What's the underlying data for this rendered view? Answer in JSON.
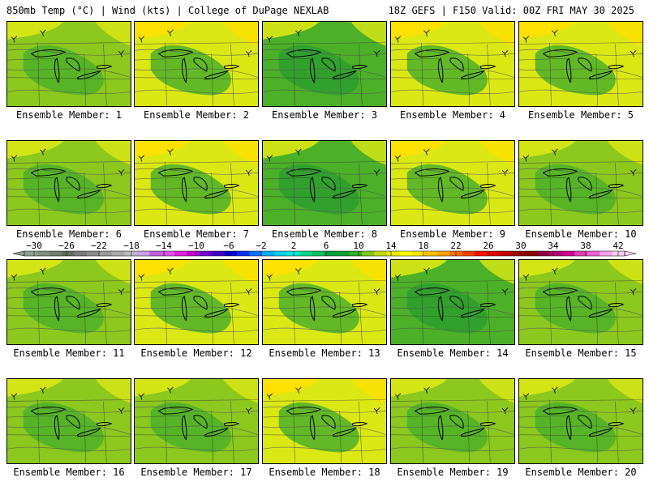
{
  "header": {
    "left": "850mb Temp (°C) | Wind (kts) | College of DuPage NEXLAB",
    "right": "18Z GEFS | F150 Valid: 00Z FRI MAY 30 2025"
  },
  "panels": [
    {
      "label": "Ensemble Member: 1",
      "tone": "mid"
    },
    {
      "label": "Ensemble Member: 2",
      "tone": "warm"
    },
    {
      "label": "Ensemble Member: 3",
      "tone": "cool"
    },
    {
      "label": "Ensemble Member: 4",
      "tone": "warm"
    },
    {
      "label": "Ensemble Member: 5",
      "tone": "warm"
    },
    {
      "label": "Ensemble Member: 6",
      "tone": "mid"
    },
    {
      "label": "Ensemble Member: 7",
      "tone": "warm"
    },
    {
      "label": "Ensemble Member: 8",
      "tone": "cool"
    },
    {
      "label": "Ensemble Member: 9",
      "tone": "warm"
    },
    {
      "label": "Ensemble Member: 10",
      "tone": "mid"
    },
    {
      "label": "Ensemble Member: 11",
      "tone": "mid"
    },
    {
      "label": "Ensemble Member: 12",
      "tone": "warm"
    },
    {
      "label": "Ensemble Member: 13",
      "tone": "warm"
    },
    {
      "label": "Ensemble Member: 14",
      "tone": "cool"
    },
    {
      "label": "Ensemble Member: 15",
      "tone": "mid"
    },
    {
      "label": "Ensemble Member: 16",
      "tone": "mid"
    },
    {
      "label": "Ensemble Member: 17",
      "tone": "mid"
    },
    {
      "label": "Ensemble Member: 18",
      "tone": "warm"
    },
    {
      "label": "Ensemble Member: 19",
      "tone": "mid"
    },
    {
      "label": "Ensemble Member: 20",
      "tone": "mid"
    }
  ],
  "colorbar": {
    "labels": [
      "−30",
      "−26",
      "−22",
      "−18",
      "−14",
      "−10",
      "−6",
      "−2",
      "2",
      "6",
      "10",
      "14",
      "18",
      "22",
      "26",
      "30",
      "34",
      "38",
      "42"
    ],
    "colors": [
      "#8fa08f",
      "#7f8f7f",
      "#6f7f6f",
      "#5f6f5f",
      "#7a7a7a",
      "#8a8a8a",
      "#9a9a9a",
      "#aaaaaa",
      "#bbbbbb",
      "#c8a0e8",
      "#c060e8",
      "#e050e8",
      "#e020e0",
      "#c000d0",
      "#7000d0",
      "#4000c0",
      "#0000d0",
      "#0030f0",
      "#0070f8",
      "#00a8f8",
      "#00d0f0",
      "#00e8d8",
      "#00d890",
      "#00c060",
      "#00a040",
      "#10a030",
      "#30b020",
      "#80c820",
      "#c0dc10",
      "#e8ec00",
      "#ffff00",
      "#ffe000",
      "#ffc000",
      "#ffa000",
      "#ff7000",
      "#ff4000",
      "#ff1000",
      "#e00000",
      "#c00000",
      "#a00000",
      "#8a0000",
      "#900040",
      "#b00070",
      "#d00090",
      "#e040b0",
      "#f060d0",
      "#f8a0e8",
      "#fcd0f4"
    ],
    "field_colors": {
      "cool": "#2e9e2e",
      "mid": "#8cc81e",
      "warm": "#dce814",
      "hot": "#ffe000",
      "green2": "#4cb028"
    }
  }
}
